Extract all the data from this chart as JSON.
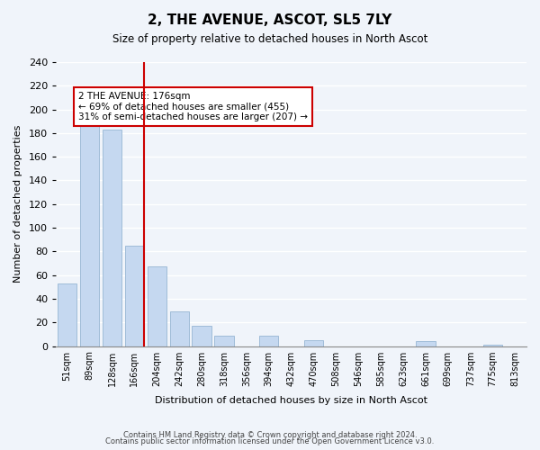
{
  "title": "2, THE AVENUE, ASCOT, SL5 7LY",
  "subtitle": "Size of property relative to detached houses in North Ascot",
  "xlabel": "Distribution of detached houses by size in North Ascot",
  "ylabel": "Number of detached properties",
  "categories": [
    "51sqm",
    "89sqm",
    "128sqm",
    "166sqm",
    "204sqm",
    "242sqm",
    "280sqm",
    "318sqm",
    "356sqm",
    "394sqm",
    "432sqm",
    "470sqm",
    "508sqm",
    "546sqm",
    "585sqm",
    "623sqm",
    "661sqm",
    "699sqm",
    "737sqm",
    "775sqm",
    "813sqm"
  ],
  "values": [
    53,
    191,
    183,
    85,
    67,
    29,
    17,
    9,
    0,
    9,
    0,
    5,
    0,
    0,
    0,
    0,
    4,
    0,
    0,
    1,
    0
  ],
  "bar_color": "#c5d8f0",
  "bar_edge_color": "#a0bcd8",
  "vline_x": 3,
  "vline_color": "#cc0000",
  "annotation_text": "2 THE AVENUE: 176sqm\n← 69% of detached houses are smaller (455)\n31% of semi-detached houses are larger (207) →",
  "annotation_box_color": "#ffffff",
  "annotation_box_edge_color": "#cc0000",
  "ylim": [
    0,
    240
  ],
  "yticks": [
    0,
    20,
    40,
    60,
    80,
    100,
    120,
    140,
    160,
    180,
    200,
    220,
    240
  ],
  "footer_line1": "Contains HM Land Registry data © Crown copyright and database right 2024.",
  "footer_line2": "Contains public sector information licensed under the Open Government Licence v3.0.",
  "background_color": "#f0f4fa",
  "plot_bg_color": "#f0f4fa"
}
